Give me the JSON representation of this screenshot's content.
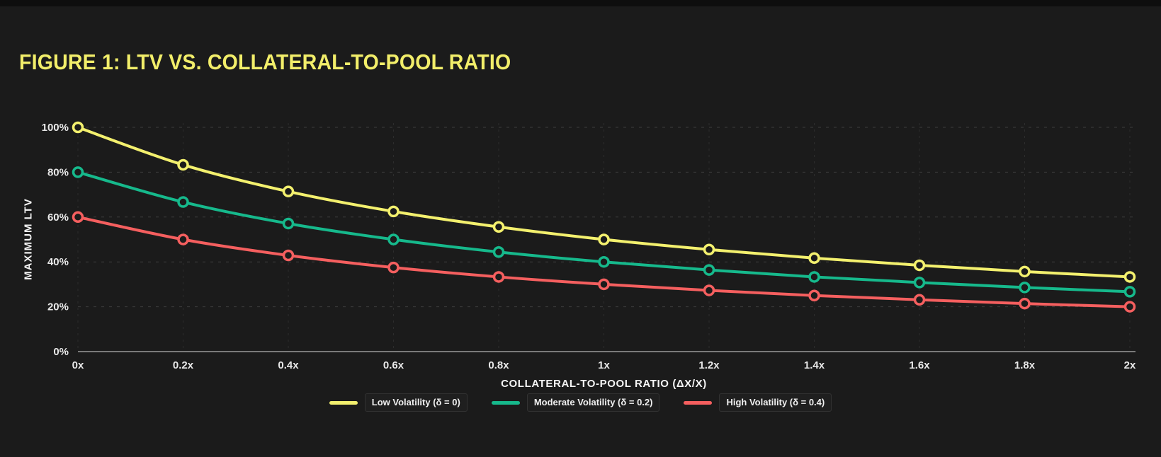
{
  "chart_data": {
    "type": "line",
    "title": "FIGURE 1: LTV VS. COLLATERAL-TO-POOL RATIO",
    "xlabel": "COLLATERAL-TO-POOL RATIO (ΔX/X)",
    "ylabel": "MAXIMUM LTV",
    "x": [
      0,
      0.2,
      0.4,
      0.6,
      0.8,
      1,
      1.2,
      1.4,
      1.6,
      1.8,
      2
    ],
    "x_tick_labels": [
      "0x",
      "0.2x",
      "0.4x",
      "0.6x",
      "0.8x",
      "1x",
      "1.2x",
      "1.4x",
      "1.6x",
      "1.8x",
      "2x"
    ],
    "y_ticks": [
      0,
      20,
      40,
      60,
      80,
      100
    ],
    "y_tick_labels": [
      "0%",
      "20%",
      "40%",
      "60%",
      "80%",
      "100%"
    ],
    "xlim": [
      0,
      2
    ],
    "ylim": [
      0,
      100
    ],
    "grid": {
      "horizontal": "dashed",
      "vertical": "dashed"
    },
    "legend_position": "bottom",
    "series": [
      {
        "name": "Low Volatility (δ = 0)",
        "color": "#f3f06e",
        "values": [
          100,
          83.3,
          71.4,
          62.5,
          55.6,
          50,
          45.5,
          41.7,
          38.5,
          35.7,
          33.3
        ]
      },
      {
        "name": "Moderate Volatility (δ = 0.2)",
        "color": "#16b98c",
        "values": [
          80,
          66.7,
          57.1,
          50,
          44.4,
          40,
          36.4,
          33.3,
          30.8,
          28.6,
          26.7
        ]
      },
      {
        "name": "High Volatility (δ = 0.4)",
        "color": "#f55f5f",
        "values": [
          60,
          50,
          42.9,
          37.5,
          33.3,
          30,
          27.3,
          25,
          23.1,
          21.4,
          20
        ]
      }
    ],
    "colors": {
      "background": "#1b1b1b",
      "title": "#f2ee6a",
      "grid_horizontal": "#3c3c3c",
      "grid_vertical": "#2d2d2d",
      "axis_line": "#7a7a7a",
      "tick_text": "#e8e8e8"
    }
  }
}
